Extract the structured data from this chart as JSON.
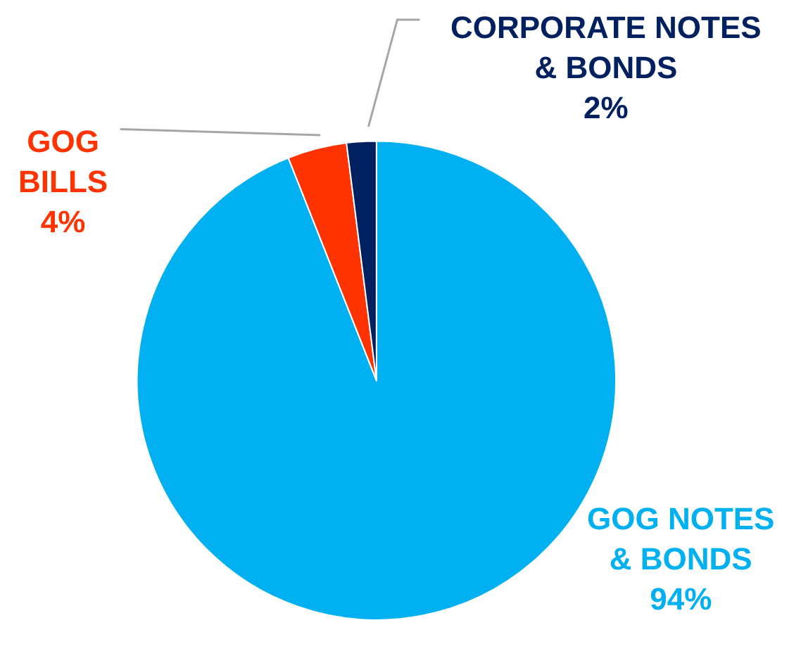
{
  "chart_data": {
    "type": "pie",
    "categories": [
      "GOG NOTES & BONDS",
      "GOG BILLS",
      "CORPORATE NOTES & BONDS"
    ],
    "values": [
      94,
      4,
      2
    ],
    "colors": [
      "#00b0f0",
      "#ff3300",
      "#002060"
    ],
    "value_labels": [
      "94%",
      "4%",
      "2%"
    ],
    "legend": false
  }
}
